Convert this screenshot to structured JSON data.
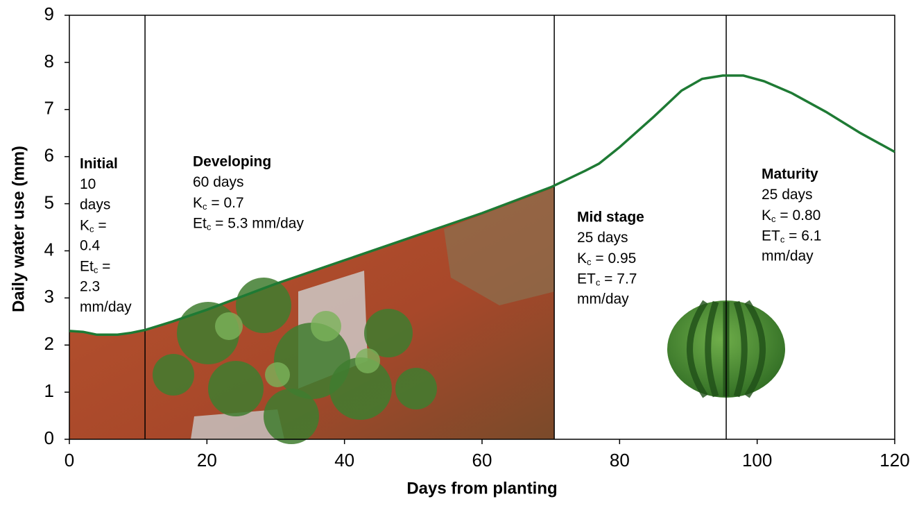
{
  "chart_data": {
    "type": "line",
    "x_label": "Days from planting",
    "y_label": "Daily water use (mm)",
    "xlim": [
      0,
      120
    ],
    "xticks": [
      0,
      20,
      40,
      60,
      80,
      100,
      120
    ],
    "ylim": [
      0,
      9
    ],
    "yticks": [
      0,
      1,
      2,
      3,
      4,
      5,
      6,
      7,
      8,
      9
    ],
    "x": [
      0,
      2,
      4,
      7,
      9,
      11,
      15,
      20,
      30,
      40,
      50,
      60,
      70,
      75,
      77,
      80,
      85,
      89,
      92,
      95,
      98,
      101,
      105,
      110,
      115,
      120
    ],
    "series": [
      {
        "color": "#1e7a34",
        "values": [
          2.3,
          2.28,
          2.22,
          2.22,
          2.26,
          2.32,
          2.5,
          2.75,
          3.3,
          3.8,
          4.3,
          4.8,
          5.35,
          5.7,
          5.85,
          6.2,
          6.85,
          7.4,
          7.65,
          7.72,
          7.72,
          7.6,
          7.35,
          6.95,
          6.5,
          6.1
        ]
      }
    ],
    "stage_boundaries": [
      11,
      70.5,
      95.5
    ],
    "stages": [
      {
        "name": "Initial",
        "lines": [
          "10",
          "days",
          {
            "base": "K",
            "sub": "c",
            "rest": " ="
          },
          "0.4",
          {
            "base": "Et",
            "sub": "c",
            "rest": " ="
          },
          "2.3",
          "mm/day"
        ]
      },
      {
        "name": "Developing",
        "lines": [
          "60 days",
          {
            "base": "K",
            "sub": "c",
            "rest": " = 0.7"
          },
          {
            "base": "Et",
            "sub": "c",
            "rest": " = 5.3 mm/day"
          }
        ]
      },
      {
        "name": "Mid stage",
        "lines": [
          "25 days",
          {
            "base": "K",
            "sub": "c",
            "rest": " = 0.95"
          },
          {
            "base": "ET",
            "sub": "c",
            "rest": " = 7.7"
          },
          "mm/day"
        ]
      },
      {
        "name": "Maturity",
        "lines": [
          "25 days",
          {
            "base": "K",
            "sub": "c",
            "rest": " = 0.80"
          },
          {
            "base": "ET",
            "sub": "c",
            "rest": " = 6.1"
          },
          "mm/day"
        ]
      }
    ]
  }
}
